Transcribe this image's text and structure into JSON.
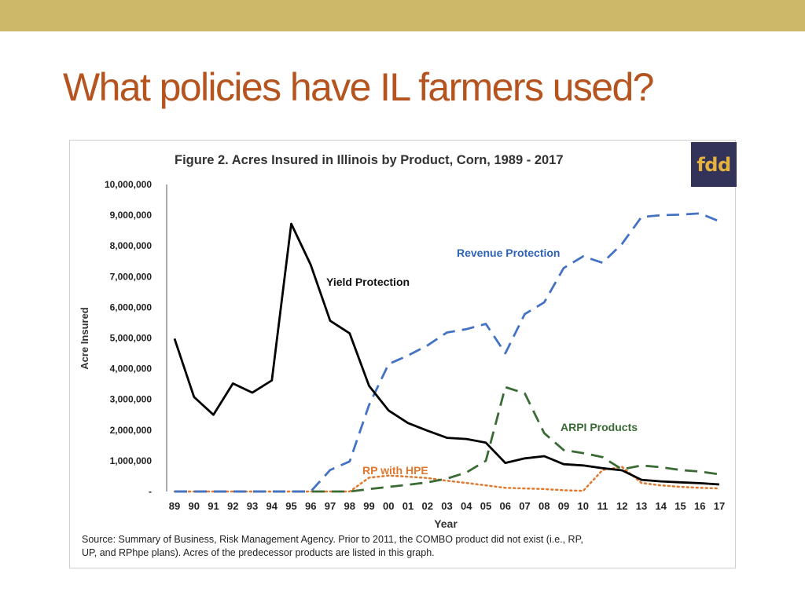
{
  "slide": {
    "title": "What policies have IL farmers used?",
    "band_color": "#cdb768",
    "title_color": "#b5541f"
  },
  "logo": {
    "text": "fdd",
    "bg_color": "#33335a",
    "text_color": "#e4b23d"
  },
  "source": {
    "line1": "Source:  Summary of Business, Risk Management Agency.  Prior to 2011, the COMBO product did not exist (i.e., RP,",
    "line2": "UP, and RPhpe plans).  Acres of the predecessor products are listed in this graph."
  },
  "chart_data": {
    "type": "line",
    "title": "Figure 2. Acres Insured in Illinois by Product, Corn, 1989 - 2017",
    "xlabel": "Year",
    "ylabel": "Acre Insured",
    "categories": [
      "89",
      "90",
      "91",
      "92",
      "93",
      "94",
      "95",
      "96",
      "97",
      "98",
      "99",
      "00",
      "01",
      "02",
      "03",
      "04",
      "05",
      "06",
      "07",
      "08",
      "09",
      "10",
      "11",
      "12",
      "13",
      "14",
      "15",
      "16",
      "17"
    ],
    "ylim": [
      0,
      10000000
    ],
    "yticks": [
      "-",
      "1,000,000",
      "2,000,000",
      "3,000,000",
      "4,000,000",
      "5,000,000",
      "6,000,000",
      "7,000,000",
      "8,000,000",
      "9,000,000",
      "10,000,000"
    ],
    "grid": false,
    "series": [
      {
        "name": "Yield Protection",
        "color": "#000000",
        "style": "solid",
        "values": [
          4980000,
          3080000,
          2500000,
          3520000,
          3220000,
          3620000,
          8720000,
          7380000,
          5560000,
          5150000,
          3440000,
          2640000,
          2230000,
          1980000,
          1750000,
          1710000,
          1590000,
          930000,
          1080000,
          1150000,
          890000,
          850000,
          760000,
          690000,
          380000,
          330000,
          300000,
          270000,
          230000
        ]
      },
      {
        "name": "Revenue Protection",
        "color": "#4472c4",
        "style": "dash",
        "values": [
          0,
          0,
          0,
          0,
          0,
          0,
          0,
          0,
          700000,
          980000,
          2820000,
          4150000,
          4430000,
          4760000,
          5180000,
          5290000,
          5460000,
          4500000,
          5780000,
          6160000,
          7280000,
          7660000,
          7450000,
          8070000,
          8940000,
          9000000,
          9020000,
          9060000,
          8800000
        ]
      },
      {
        "name": "ARPI Products",
        "color": "#3a6b35",
        "style": "dash",
        "values": [
          0,
          0,
          0,
          0,
          0,
          0,
          0,
          0,
          0,
          0,
          80000,
          150000,
          220000,
          300000,
          420000,
          620000,
          1000000,
          3400000,
          3200000,
          1900000,
          1350000,
          1250000,
          1120000,
          720000,
          850000,
          790000,
          700000,
          650000,
          560000
        ]
      },
      {
        "name": "RP with HPE",
        "color": "#e0782e",
        "style": "dot",
        "values": [
          0,
          0,
          0,
          0,
          0,
          0,
          0,
          0,
          0,
          0,
          450000,
          520000,
          480000,
          440000,
          350000,
          280000,
          200000,
          120000,
          100000,
          80000,
          40000,
          20000,
          700000,
          800000,
          280000,
          200000,
          150000,
          120000,
          100000
        ]
      }
    ]
  }
}
